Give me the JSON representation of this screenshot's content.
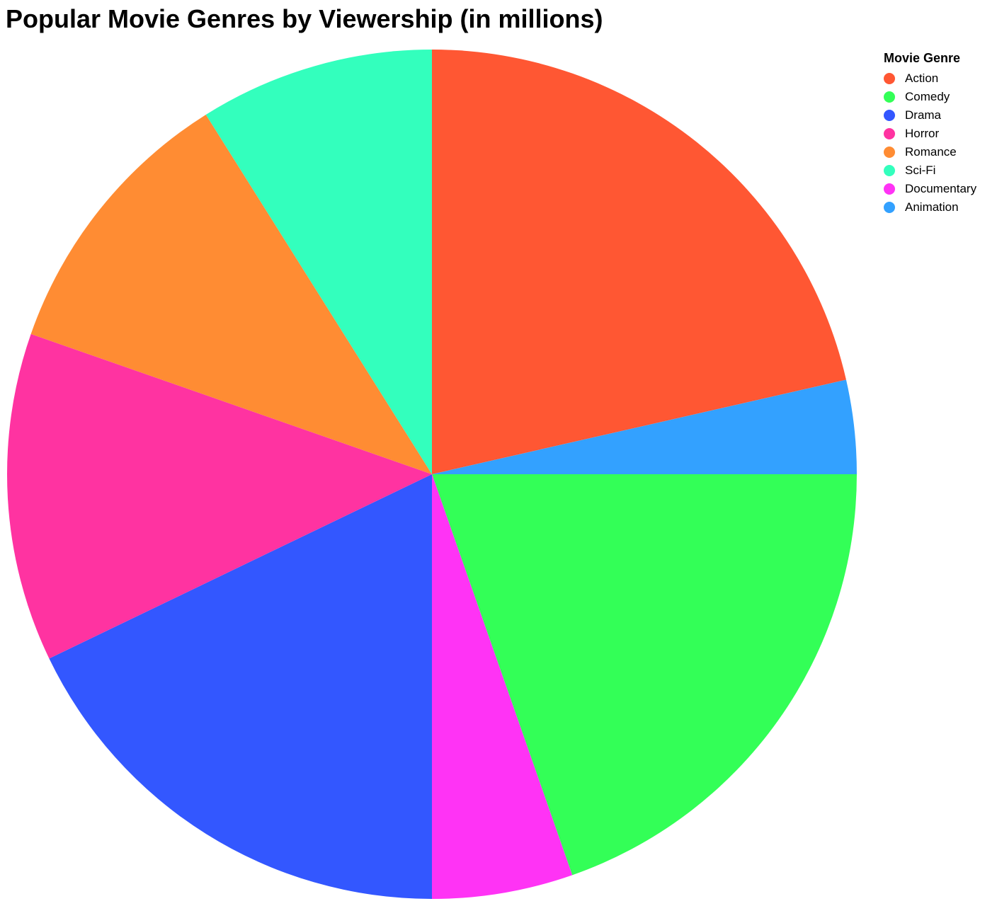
{
  "chart_data": {
    "type": "pie",
    "title": "Popular Movie Genres by Viewership (in millions)",
    "legend_title": "Movie Genre",
    "legend_position": "top-right",
    "start_angle_deg": 0,
    "direction": "clockwise",
    "slices": [
      {
        "label": "Action",
        "value": 120,
        "color": "#ff5733"
      },
      {
        "label": "Animation",
        "value": 20,
        "color": "#33a1ff"
      },
      {
        "label": "Comedy",
        "value": 110,
        "color": "#33ff57"
      },
      {
        "label": "Documentary",
        "value": 30,
        "color": "#ff33f5"
      },
      {
        "label": "Drama",
        "value": 100,
        "color": "#3357ff"
      },
      {
        "label": "Horror",
        "value": 70,
        "color": "#ff33a1"
      },
      {
        "label": "Romance",
        "value": 60,
        "color": "#ff8c33"
      },
      {
        "label": "Sci-Fi",
        "value": 50,
        "color": "#33ffbd"
      }
    ],
    "legend": [
      {
        "label": "Action",
        "color": "#ff5733"
      },
      {
        "label": "Comedy",
        "color": "#33ff57"
      },
      {
        "label": "Drama",
        "color": "#3357ff"
      },
      {
        "label": "Horror",
        "color": "#ff33a1"
      },
      {
        "label": "Romance",
        "color": "#ff8c33"
      },
      {
        "label": "Sci-Fi",
        "color": "#33ffbd"
      },
      {
        "label": "Documentary",
        "color": "#ff33f5"
      },
      {
        "label": "Animation",
        "color": "#33a1ff"
      }
    ]
  }
}
